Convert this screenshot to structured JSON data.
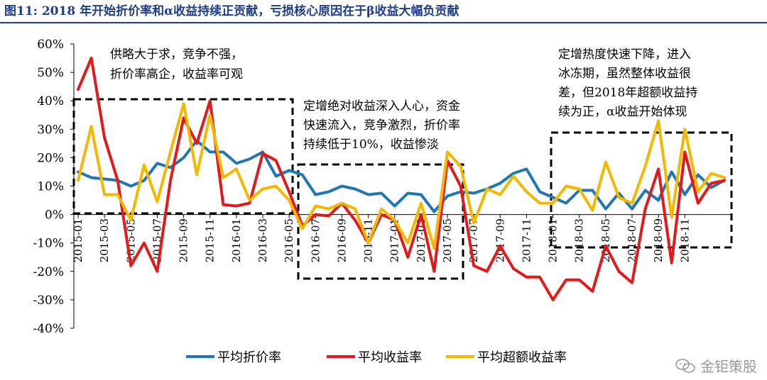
{
  "figure": {
    "title": "图11:  2018 年开始折价率和α收益持续正贡献，亏损核心原因在于β收益大幅负贡献",
    "watermark": "金钜策股"
  },
  "colors": {
    "title": "#1f3d8c",
    "discount": "#1f77b4",
    "return": "#e31a1c",
    "excess": "#f5b800"
  },
  "annotations": [
    {
      "lines": [
        "供略大于求，竞争不强，",
        "折价率高企，收益率可观"
      ]
    },
    {
      "lines": [
        "定增绝对收益深入人心，资金",
        "快速流入，竞争激烈，折价率",
        "持续低于10%，收益惨淡"
      ]
    },
    {
      "lines": [
        "定增热度快速下降，进入",
        "冰冻期，虽然整体收益很",
        "差，但2018年超额收益持",
        "续为正，α收益开始体现"
      ]
    }
  ],
  "chart_data": {
    "type": "line",
    "ylim": [
      -0.4,
      0.6
    ],
    "yticks": [
      "60%",
      "50%",
      "40%",
      "30%",
      "20%",
      "10%",
      "0%",
      "-10%",
      "-20%",
      "-30%",
      "-40%"
    ],
    "xtick_labels": [
      "2015-01",
      "2015-03",
      "2015-05",
      "2015-07",
      "2015-09",
      "2015-11",
      "2016-01",
      "2016-03",
      "2016-05",
      "2016-07",
      "2016-09",
      "2016-11",
      "2017-01",
      "2017-03",
      "2017-05",
      "2017-07",
      "2017-09",
      "2017-11",
      "2018-01",
      "2018-03",
      "2018-05",
      "2018-07",
      "2018-09",
      "2018-11"
    ],
    "legend_position": "bottom",
    "grid": false,
    "series": [
      {
        "name": "平均折价率",
        "color": "#1f77b4",
        "values": [
          0.15,
          0.13,
          0.125,
          0.12,
          0.1,
          0.12,
          0.18,
          0.165,
          0.2,
          0.26,
          0.22,
          0.22,
          0.18,
          0.195,
          0.22,
          0.135,
          0.155,
          0.14,
          0.07,
          0.08,
          0.1,
          0.09,
          0.07,
          0.075,
          0.03,
          0.075,
          0.07,
          0.01,
          0.065,
          0.08,
          0.075,
          0.09,
          0.11,
          0.145,
          0.16,
          0.08,
          0.06,
          0.04,
          0.085,
          0.085,
          0.02,
          0.075,
          0.02,
          0.085,
          0.05,
          0.15,
          0.07,
          0.14,
          0.095,
          0.12
        ]
      },
      {
        "name": "平均收益率",
        "color": "#e31a1c",
        "values": [
          0.44,
          0.55,
          0.27,
          0.12,
          -0.18,
          -0.1,
          -0.2,
          0.12,
          0.34,
          0.25,
          0.4,
          0.035,
          0.03,
          0.04,
          0.215,
          0.19,
          0.08,
          -0.04,
          0.0,
          -0.005,
          0.04,
          -0.02,
          -0.1,
          0.0,
          -0.02,
          -0.15,
          0.0,
          -0.2,
          0.19,
          0.1,
          -0.18,
          -0.2,
          -0.11,
          -0.19,
          -0.22,
          -0.22,
          -0.3,
          -0.23,
          -0.23,
          -0.27,
          -0.11,
          -0.2,
          -0.24,
          0.02,
          0.16,
          -0.17,
          0.22,
          0.04,
          0.11,
          0.12
        ]
      },
      {
        "name": "平均超额收益率",
        "color": "#f5b800",
        "values": [
          0.12,
          0.31,
          0.07,
          0.07,
          -0.02,
          0.175,
          0.045,
          0.22,
          0.39,
          0.14,
          0.35,
          0.13,
          0.16,
          0.05,
          0.09,
          0.1,
          0.05,
          -0.05,
          0.03,
          0.02,
          0.04,
          0.02,
          -0.1,
          0.02,
          -0.02,
          -0.1,
          0.04,
          -0.12,
          0.22,
          0.17,
          -0.03,
          0.09,
          0.07,
          0.135,
          0.08,
          0.04,
          0.04,
          0.1,
          0.09,
          0.015,
          0.185,
          0.06,
          0.04,
          0.17,
          0.33,
          -0.01,
          0.3,
          0.08,
          0.145,
          0.13
        ]
      }
    ]
  }
}
